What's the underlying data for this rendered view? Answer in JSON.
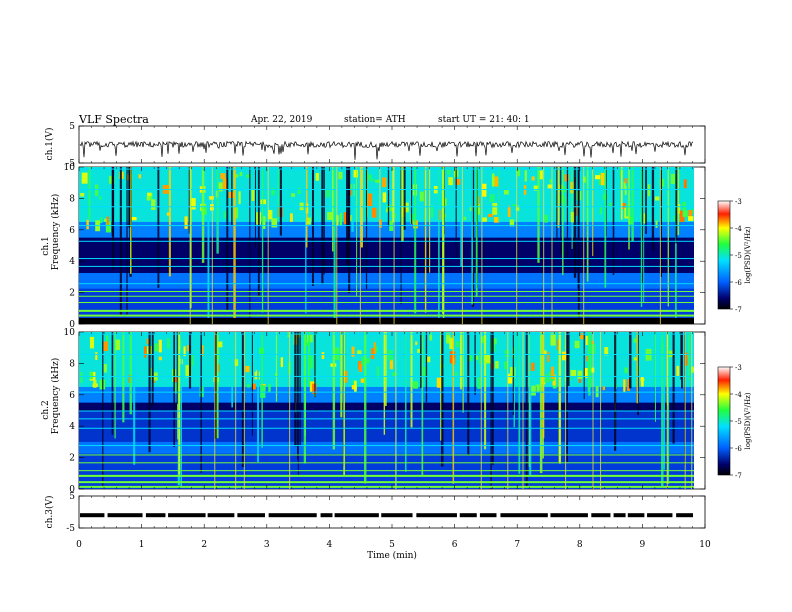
{
  "header": {
    "title": "VLF  Spectra",
    "date": "Apr. 22, 2019",
    "station": "station= ATH",
    "start": "start  UT  =    21: 40: 1"
  },
  "chart_data": [
    {
      "type": "line",
      "panel": "ch1-waveform",
      "ylabel": "ch.1(V)",
      "ylim": [
        -5,
        5
      ],
      "yticks": [
        "5",
        "-5"
      ],
      "xlim": [
        0,
        10
      ],
      "series": [
        {
          "values_description": "noisy trace centered near 0 V with downward spikes",
          "mean": 0.0
        }
      ]
    },
    {
      "type": "heatmap",
      "panel": "ch1-spectrogram",
      "ylabel": "ch.1\nFrequency  (kHz)",
      "ylim": [
        0,
        10
      ],
      "yticks": [
        "0",
        "2",
        "4",
        "6",
        "8",
        "10"
      ],
      "xlim": [
        0,
        9.8
      ],
      "colorbar": {
        "label": "log(PSD)(V²/Hz)",
        "range": [
          -7,
          -3
        ],
        "ticks": [
          "-3",
          "-4",
          "-5",
          "-6",
          "-7"
        ]
      }
    },
    {
      "type": "heatmap",
      "panel": "ch2-spectrogram",
      "ylabel": "ch.2\nFrequency  (kHz)",
      "ylim": [
        0,
        10
      ],
      "yticks": [
        "0",
        "2",
        "4",
        "6",
        "8",
        "10"
      ],
      "xlim": [
        0,
        9.8
      ],
      "colorbar": {
        "label": "log(PSD)(V²/Hz)",
        "range": [
          -7,
          -3
        ],
        "ticks": [
          "-3",
          "-4",
          "-5",
          "-6",
          "-7"
        ]
      }
    },
    {
      "type": "line",
      "panel": "ch3-waveform",
      "ylabel": "ch.3(V)",
      "ylim": [
        -5,
        5
      ],
      "yticks": [
        "5",
        "-5"
      ],
      "xlim": [
        0,
        10
      ],
      "series": [
        {
          "values_description": "flat thick trace near -1 V with small gaps",
          "mean": -1.0
        }
      ]
    }
  ],
  "xaxis": {
    "label": "Time  (min)",
    "ticks": [
      "0",
      "1",
      "2",
      "3",
      "4",
      "5",
      "6",
      "7",
      "8",
      "9",
      "10"
    ]
  },
  "colors": {
    "spectrogram_low": "#000040",
    "spectrogram_mid": "#00c0ff",
    "spectrogram_high": "#ff0000"
  }
}
